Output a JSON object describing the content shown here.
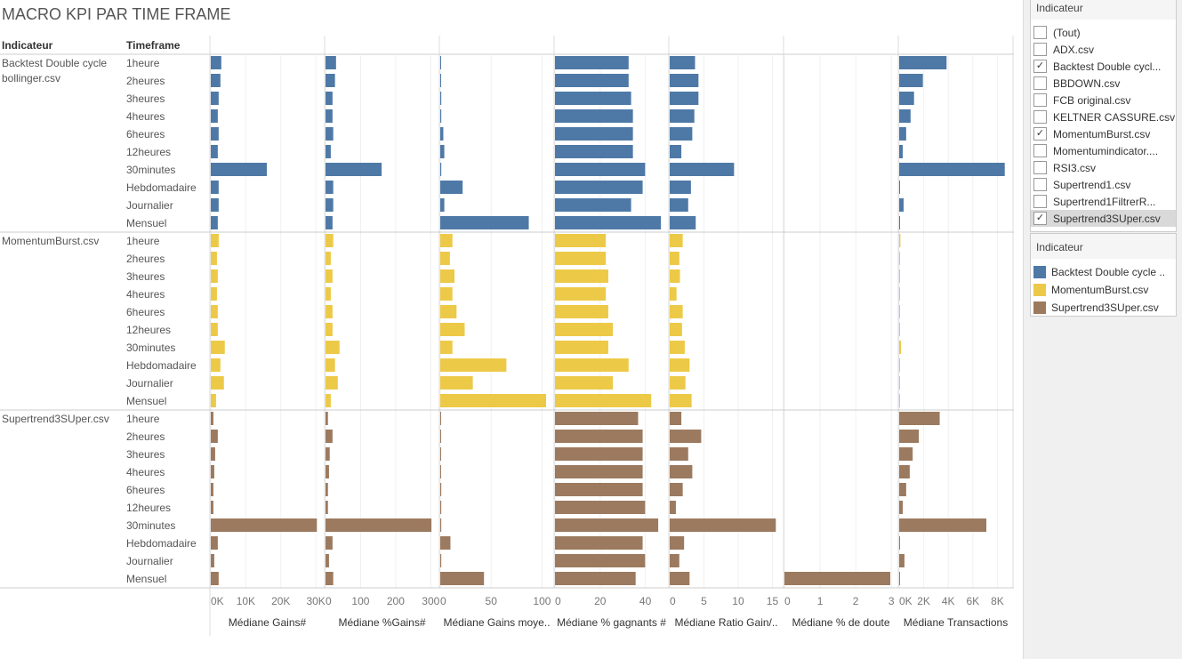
{
  "title": "MACRO KPI PAR TIME FRAME",
  "headers": {
    "indicateur": "Indicateur",
    "timeframe": "Timeframe"
  },
  "timeframes": [
    "1heure",
    "2heures",
    "3heures",
    "4heures",
    "6heures",
    "12heures",
    "30minutes",
    "Hebdomadaire",
    "Journalier",
    "Mensuel"
  ],
  "chart_data": {
    "type": "bar",
    "groups": [
      {
        "name": "Backtest Double cycle bollinger.csv",
        "label_lines": [
          "Backtest Double cycle",
          "bollinger.csv"
        ],
        "color": "#4e79a7",
        "values": {
          "gains": [
            3000,
            2750,
            2250,
            2000,
            2250,
            2000,
            16000,
            2250,
            2250,
            2000
          ],
          "pct_gains": [
            30,
            27,
            20,
            20,
            22,
            15,
            160,
            22,
            22,
            20
          ],
          "gains_moyen": [
            0.3,
            0.3,
            1,
            1,
            3,
            4,
            1,
            22,
            4,
            87
          ],
          "pct_gagnants": [
            32.6,
            32.6,
            33.7,
            34.5,
            34.5,
            34.5,
            39.9,
            38.8,
            33.7,
            46.9
          ],
          "ratio": [
            3.7,
            4.2,
            4.2,
            3.6,
            3.3,
            1.7,
            9.4,
            3.1,
            2.7,
            3.8
          ],
          "doute": [
            0,
            0,
            0,
            0,
            0,
            0,
            0,
            0,
            0,
            0
          ],
          "transactions": [
            3860,
            1930,
            1210,
            930,
            570,
            290,
            8600,
            50,
            360,
            20
          ]
        }
      },
      {
        "name": "MomentumBurst.csv",
        "label_lines": [
          "MomentumBurst.csv"
        ],
        "color": "#edc948",
        "values": {
          "gains": [
            2250,
            1750,
            2000,
            1750,
            2000,
            2000,
            4000,
            2750,
            3750,
            1500
          ],
          "pct_gains": [
            22,
            15,
            20,
            15,
            20,
            20,
            40,
            27,
            35,
            15
          ],
          "gains_moyen": [
            12,
            9.5,
            14,
            12,
            16,
            24,
            12,
            65,
            32,
            104
          ],
          "pct_gagnants": [
            22.5,
            22.5,
            23.6,
            22.5,
            23.6,
            25.6,
            23.6,
            32.6,
            25.6,
            42.6
          ],
          "ratio": [
            1.9,
            1.4,
            1.5,
            1.0,
            1.9,
            1.8,
            2.2,
            2.9,
            2.3,
            3.2
          ],
          "doute": [
            0,
            0,
            0,
            0,
            0,
            0,
            0,
            0,
            0,
            0
          ],
          "transactions": [
            100,
            40,
            40,
            30,
            30,
            30,
            150,
            20,
            50,
            20
          ]
        }
      },
      {
        "name": "Supertrend3SUper.csv",
        "label_lines": [
          "Supertrend3SUper.csv"
        ],
        "color": "#9c7a5f",
        "values": {
          "gains": [
            750,
            2000,
            1250,
            1000,
            750,
            750,
            30300,
            2000,
            1000,
            2250
          ],
          "pct_gains": [
            7,
            20,
            12,
            10,
            7,
            7,
            302,
            20,
            10,
            22
          ],
          "gains_moyen": [
            0.2,
            0.2,
            0.2,
            0.2,
            1,
            1,
            1,
            10,
            1,
            43
          ],
          "pct_gagnants": [
            36.8,
            38.8,
            38.8,
            38.8,
            38.8,
            39.9,
            45.7,
            38.8,
            39.9,
            35.7
          ],
          "ratio": [
            1.7,
            4.6,
            2.7,
            3.3,
            1.9,
            0.9,
            15.5,
            2.1,
            1.4,
            2.9
          ],
          "doute": [
            0,
            0,
            0,
            0,
            0,
            0,
            0,
            0,
            0,
            2.97
          ],
          "transactions": [
            3300,
            1600,
            1100,
            860,
            570,
            290,
            7100,
            50,
            430,
            20
          ]
        }
      }
    ],
    "measures": [
      {
        "key": "gains",
        "label": "Médiane Gains#",
        "range": [
          0,
          32250
        ],
        "ticks": [
          0,
          10000,
          20000,
          30000
        ],
        "tick_labels": [
          "0K",
          "10K",
          "20K",
          "30K"
        ]
      },
      {
        "key": "pct_gains",
        "label": "Médiane %Gains#",
        "range": [
          0,
          322
        ],
        "ticks": [
          0,
          100,
          200,
          300
        ],
        "tick_labels": [
          "0",
          "100",
          "200",
          "300"
        ]
      },
      {
        "key": "gains_moyen",
        "label": "Médiane Gains moye..",
        "range": [
          0,
          111
        ],
        "ticks": [
          0,
          50,
          100
        ],
        "tick_labels": [
          "0",
          "50",
          "100"
        ]
      },
      {
        "key": "pct_gagnants",
        "label": "Médiane % gagnants #",
        "range": [
          0,
          50
        ],
        "ticks": [
          0,
          20,
          40
        ],
        "tick_labels": [
          "0",
          "20",
          "40"
        ]
      },
      {
        "key": "ratio",
        "label": "Médiane Ratio Gain/..",
        "range": [
          0,
          16.5
        ],
        "ticks": [
          0,
          5,
          10,
          15
        ],
        "tick_labels": [
          "0",
          "5",
          "10",
          "15"
        ]
      },
      {
        "key": "doute",
        "label": "Médiane % de doute",
        "range": [
          0,
          3.17
        ],
        "ticks": [
          0,
          1,
          2,
          3
        ],
        "tick_labels": [
          "0",
          "1",
          "2",
          "3"
        ]
      },
      {
        "key": "transactions",
        "label": "Médiane Transactions",
        "range": [
          0,
          9200
        ],
        "ticks": [
          0,
          2000,
          4000,
          6000,
          8000
        ],
        "tick_labels": [
          "0K",
          "2K",
          "4K",
          "6K",
          "8K"
        ]
      }
    ]
  },
  "filter": {
    "title": "Indicateur",
    "items": [
      {
        "label": "(Tout)",
        "checked": false
      },
      {
        "label": "ADX.csv",
        "checked": false
      },
      {
        "label": "Backtest Double cycl...",
        "checked": true
      },
      {
        "label": "BBDOWN.csv",
        "checked": false
      },
      {
        "label": "FCB original.csv",
        "checked": false
      },
      {
        "label": "KELTNER CASSURE.csv",
        "checked": false
      },
      {
        "label": "MomentumBurst.csv",
        "checked": true
      },
      {
        "label": "Momentumindicator....",
        "checked": false
      },
      {
        "label": "RSI3.csv",
        "checked": false
      },
      {
        "label": "Supertrend1.csv",
        "checked": false
      },
      {
        "label": "Supertrend1FiltrerR...",
        "checked": false
      },
      {
        "label": "Supertrend3SUper.csv",
        "checked": true
      }
    ]
  },
  "legend": {
    "title": "Indicateur",
    "items": [
      {
        "label": "Backtest Double cycle ..",
        "color": "#4e79a7"
      },
      {
        "label": "MomentumBurst.csv",
        "color": "#edc948"
      },
      {
        "label": "Supertrend3SUper.csv",
        "color": "#9c7a5f"
      }
    ]
  }
}
